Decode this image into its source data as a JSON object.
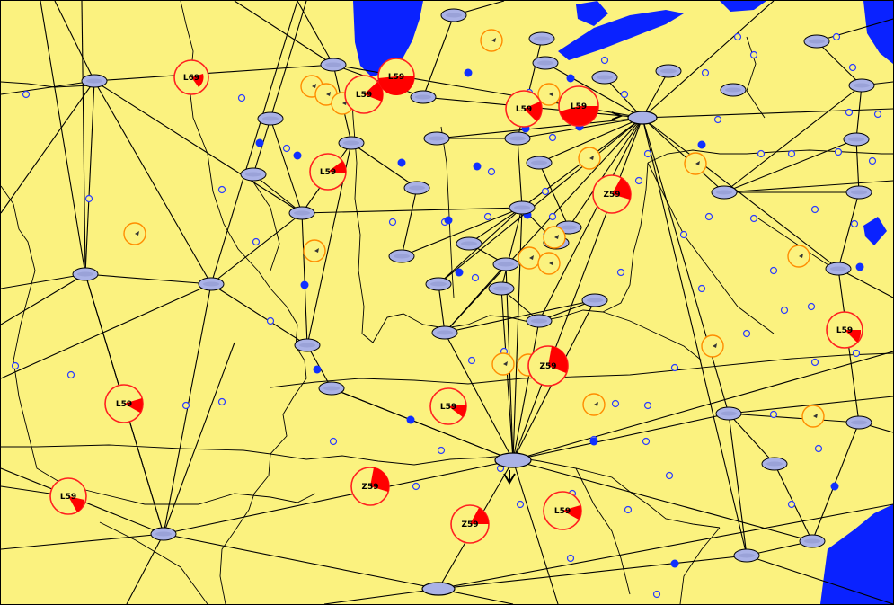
{
  "colors": {
    "land": "#fbf27f",
    "water": "#0a22ff",
    "border_line": "#000000",
    "route_line": "#000000",
    "node_fill": "#aab2e6",
    "node_stroke": "#000000",
    "sector_ring_warn": "#ff8c00",
    "sector_ring_alert": "#ff2020",
    "sector_wedge": "#ff0000",
    "fix_open": "#2a3cff",
    "fix_filled": "#1030ff"
  },
  "icons": {
    "airport": "ellipse-airport-icon",
    "sector": "circle-sector-icon",
    "fix_open": "open-circle-fix-icon",
    "fix_filled": "filled-circle-fix-icon"
  },
  "sector_labels": {
    "l1": "L69",
    "l2": "L59",
    "l3": "L59",
    "l4": "L59",
    "l5": "L59",
    "l6": "L59",
    "l7": "L59",
    "l8": "Z59",
    "l9": "Z59",
    "l10": "Z59",
    "l11": "Z59",
    "l12": "L59",
    "l13": "L59",
    "l14": "L59",
    "l15": "L59"
  }
}
